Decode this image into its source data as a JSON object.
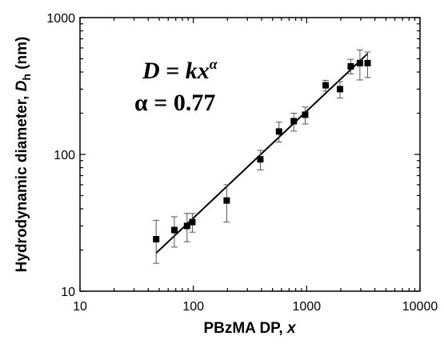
{
  "chart_data": {
    "type": "scatter",
    "xscale": "log",
    "yscale": "log",
    "xlim": [
      10,
      10000
    ],
    "ylim": [
      10,
      1000
    ],
    "xlabel": {
      "main": "PBzMA DP, ",
      "var": "x"
    },
    "ylabel": {
      "main": "Hydrodynamic diameter, ",
      "var": "D",
      "sub": "h",
      "unit": " (nm)"
    },
    "x_ticks": [
      10,
      100,
      1000,
      10000
    ],
    "x_tick_labels": [
      "10",
      "100",
      "1000",
      "10000"
    ],
    "y_ticks": [
      10,
      100,
      1000
    ],
    "y_tick_labels": [
      "10",
      "100",
      "1000"
    ],
    "annotations": [
      {
        "name": "equation-power-law",
        "text": "D = kx",
        "sup": "α"
      },
      {
        "name": "equation-alpha",
        "text": "α = 0.77"
      }
    ],
    "series": [
      {
        "marker": "square",
        "points": [
          {
            "x": 47,
            "y": 24,
            "ylo": 16,
            "yhi": 33
          },
          {
            "x": 68,
            "y": 28,
            "ylo": 21,
            "yhi": 35
          },
          {
            "x": 88,
            "y": 30,
            "ylo": 23,
            "yhi": 37
          },
          {
            "x": 98,
            "y": 32,
            "ylo": 27,
            "yhi": 37
          },
          {
            "x": 197,
            "y": 46,
            "ylo": 32,
            "yhi": 60
          },
          {
            "x": 390,
            "y": 92,
            "ylo": 77,
            "yhi": 107
          },
          {
            "x": 570,
            "y": 147,
            "ylo": 123,
            "yhi": 172
          },
          {
            "x": 770,
            "y": 175,
            "ylo": 148,
            "yhi": 200
          },
          {
            "x": 970,
            "y": 195,
            "ylo": 167,
            "yhi": 222
          },
          {
            "x": 1470,
            "y": 320,
            "ylo": 290,
            "yhi": 348
          },
          {
            "x": 1970,
            "y": 300,
            "ylo": 258,
            "yhi": 340
          },
          {
            "x": 2450,
            "y": 440,
            "ylo": 388,
            "yhi": 495
          },
          {
            "x": 2950,
            "y": 465,
            "ylo": 350,
            "yhi": 580
          },
          {
            "x": 3450,
            "y": 465,
            "ylo": 365,
            "yhi": 560
          }
        ]
      }
    ],
    "fit_line": {
      "x": [
        47,
        3450
      ],
      "y": [
        19,
        545
      ]
    }
  }
}
